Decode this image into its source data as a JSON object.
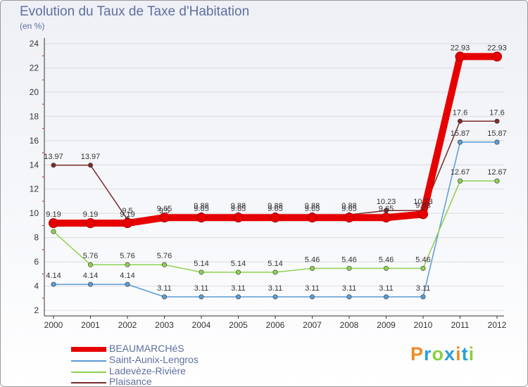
{
  "title": "Evolution du Taux de Taxe d'Habitation",
  "subtitle": "(en %)",
  "logo_text": "Proxiti",
  "chart_data": {
    "type": "line",
    "title": "Evolution du Taux de Taxe d'Habitation",
    "subtitle": "(en %)",
    "ylim": [
      2,
      24
    ],
    "yticks": [
      2,
      4,
      6,
      8,
      10,
      12,
      14,
      16,
      18,
      20,
      22,
      24
    ],
    "categories": [
      "2000",
      "2001",
      "2002",
      "2003",
      "2004",
      "2005",
      "2006",
      "2007",
      "2008",
      "2009",
      "2010",
      "2011",
      "2012"
    ],
    "grid": "horizontal",
    "legend_position": "bottom-left",
    "series": [
      {
        "name": "BEAUMARCHéS",
        "color": "#e60000",
        "emphasis": true,
        "values": [
          9.19,
          9.19,
          9.19,
          9.65,
          9.65,
          9.65,
          9.65,
          9.65,
          9.65,
          9.65,
          9.93,
          22.93,
          22.93
        ],
        "labels": [
          "9.19",
          "9.19",
          "9.19",
          "9.65",
          "9.65",
          "9.65",
          "9.65",
          "9.65",
          "9.65",
          "9.65",
          "9.93",
          "22.93",
          "22.93"
        ]
      },
      {
        "name": "Saint-Aunix-Lengros",
        "color": "#5b9bd5",
        "values": [
          4.14,
          4.14,
          4.14,
          3.11,
          3.11,
          3.11,
          3.11,
          3.11,
          3.11,
          3.11,
          3.11,
          15.87,
          15.87
        ],
        "labels": [
          "4.14",
          "4.14",
          "4.14",
          "3.11",
          "3.11",
          "3.11",
          "3.11",
          "3.11",
          "3.11",
          "3.11",
          "3.11",
          "15.87",
          "15.87"
        ]
      },
      {
        "name": "Ladevèze-Rivière",
        "color": "#8fd14f",
        "values": [
          8.5,
          5.76,
          5.76,
          5.76,
          5.14,
          5.14,
          5.14,
          5.46,
          5.46,
          5.46,
          5.46,
          12.67,
          12.67
        ],
        "labels": [
          "",
          "5.76",
          "5.76",
          "5.76",
          "5.14",
          "5.14",
          "5.14",
          "5.46",
          "5.46",
          "5.46",
          "5.46",
          "12.67",
          "12.67"
        ]
      },
      {
        "name": "Plaisance",
        "color": "#7b2a2a",
        "values": [
          13.97,
          13.97,
          9.5,
          9.5,
          9.88,
          9.88,
          9.88,
          9.88,
          9.88,
          10.23,
          10.23,
          17.6,
          17.6
        ],
        "labels": [
          "13.97",
          "13.97",
          "9.5",
          "9.5",
          "9.88",
          "9.88",
          "9.88",
          "9.88",
          "9.88",
          "10.23",
          "10.23",
          "17.6",
          "17.6"
        ]
      }
    ]
  }
}
